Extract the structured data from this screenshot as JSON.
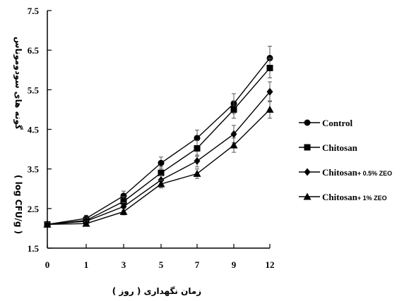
{
  "chart_data": {
    "type": "line",
    "x": [
      "0",
      "1",
      "3",
      "5",
      "7",
      "9",
      "12"
    ],
    "ylim": [
      1.5,
      7.5
    ],
    "yticks": [
      "1.5",
      "2.5",
      "3.5",
      "4.5",
      "5.5",
      "6.5",
      "7.5"
    ],
    "xlabel": "زمان نگهداری ( روز )",
    "ylabel_main": "گونه های سودوموناس",
    "ylabel_unit": "( log CFU/g )",
    "legend_position": "right",
    "grid": false,
    "series": [
      {
        "name": "Control",
        "legend_main": "Control",
        "legend_sub": "",
        "marker": "circle",
        "values": [
          2.1,
          2.25,
          2.82,
          3.65,
          4.28,
          5.15,
          6.3
        ],
        "errors": [
          0.05,
          0.08,
          0.12,
          0.15,
          0.2,
          0.25,
          0.3
        ]
      },
      {
        "name": "Chitosan",
        "legend_main": "Chitosan",
        "legend_sub": "",
        "marker": "square",
        "values": [
          2.1,
          2.2,
          2.68,
          3.4,
          4.02,
          5.0,
          6.05
        ],
        "errors": [
          0.05,
          0.08,
          0.12,
          0.15,
          0.2,
          0.22,
          0.25
        ]
      },
      {
        "name": "Chitosan+ 0.5% ZEO",
        "legend_main": "Chitosan",
        "legend_sub": "+ 0.5% ZEO",
        "marker": "diamond",
        "values": [
          2.1,
          2.18,
          2.55,
          3.22,
          3.7,
          4.38,
          5.45
        ],
        "errors": [
          0.05,
          0.07,
          0.1,
          0.12,
          0.15,
          0.22,
          0.25
        ]
      },
      {
        "name": "Chitosan+ 1% ZEO",
        "legend_main": "Chitosan",
        "legend_sub": "+ 1% ZEO",
        "marker": "triangle",
        "values": [
          2.1,
          2.12,
          2.42,
          3.12,
          3.38,
          4.1,
          5.0
        ],
        "errors": [
          0.05,
          0.06,
          0.08,
          0.1,
          0.12,
          0.18,
          0.22
        ]
      }
    ]
  }
}
